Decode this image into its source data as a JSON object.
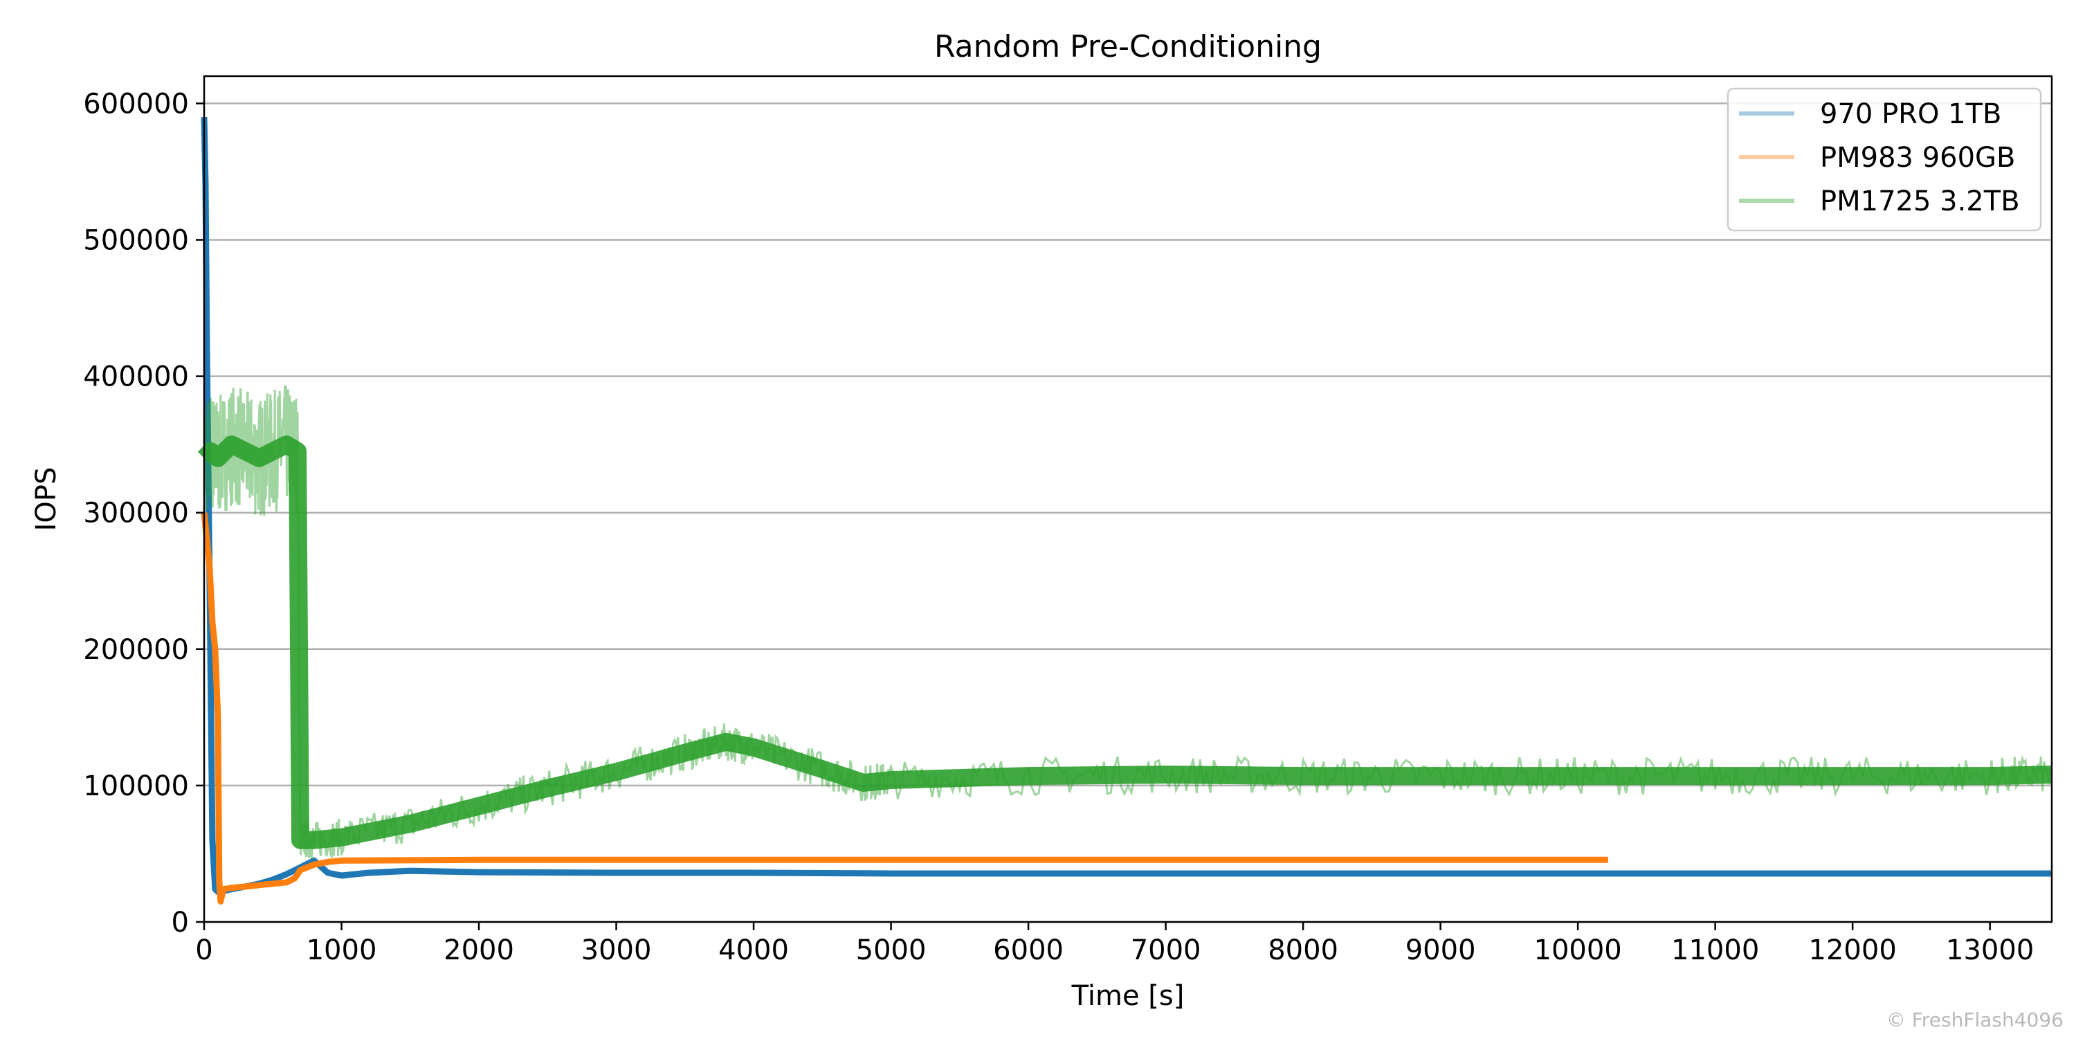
{
  "chart_data": {
    "type": "line",
    "title": "Random Pre-Conditioning",
    "xlabel": "Time [s]",
    "ylabel": "IOPS",
    "xlim": [
      0,
      13450
    ],
    "ylim": [
      0,
      620000
    ],
    "xticks": [
      0,
      1000,
      2000,
      3000,
      4000,
      5000,
      6000,
      7000,
      8000,
      9000,
      10000,
      11000,
      12000,
      13000
    ],
    "yticks": [
      0,
      100000,
      200000,
      300000,
      400000,
      500000,
      600000
    ],
    "grid": "y-major",
    "legend_position": "top-right",
    "series": [
      {
        "name": "970 PRO 1TB",
        "color": "#1f77b4",
        "x": [
          0,
          10,
          20,
          40,
          60,
          80,
          100,
          150,
          200,
          300,
          400,
          500,
          600,
          700,
          800,
          900,
          1000,
          1200,
          1500,
          2000,
          3000,
          4000,
          5000,
          6000,
          7000,
          8000,
          9000,
          10000,
          11000,
          12000,
          13000,
          13450
        ],
        "values": [
          590000,
          540000,
          420000,
          250000,
          60000,
          24000,
          22000,
          23000,
          24000,
          26000,
          28000,
          31000,
          35000,
          40000,
          45000,
          36000,
          34000,
          36000,
          37500,
          36500,
          36000,
          36000,
          35500,
          35500,
          35500,
          35500,
          35500,
          35500,
          35500,
          35500,
          35500,
          35500
        ]
      },
      {
        "name": "PM983 960GB",
        "color": "#ff7f0e",
        "x": [
          0,
          20,
          40,
          60,
          80,
          100,
          110,
          120,
          140,
          200,
          300,
          400,
          500,
          600,
          660,
          700,
          800,
          900,
          1000,
          2000,
          3000,
          4000,
          5000,
          6000,
          7000,
          8000,
          9000,
          10000,
          10220
        ],
        "values": [
          300000,
          280000,
          260000,
          220000,
          200000,
          150000,
          30000,
          15000,
          24000,
          25000,
          26000,
          27000,
          28000,
          29000,
          32000,
          38000,
          42000,
          44000,
          45000,
          45500,
          45500,
          45500,
          45500,
          45500,
          45500,
          45500,
          45500,
          45500,
          45500
        ]
      },
      {
        "name": "PM1725 3.2TB",
        "color": "#2ca02c",
        "x": [
          0,
          50,
          100,
          200,
          300,
          400,
          500,
          600,
          680,
          700,
          800,
          1000,
          1500,
          2000,
          2500,
          3000,
          3500,
          3800,
          4000,
          4500,
          4800,
          5000,
          6000,
          7000,
          8000,
          9000,
          10000,
          11000,
          12000,
          13000,
          13450
        ],
        "values": [
          340000,
          345000,
          340000,
          350000,
          345000,
          340000,
          345000,
          350000,
          345000,
          60000,
          60000,
          62000,
          72000,
          85000,
          98000,
          110000,
          124000,
          132000,
          128000,
          112000,
          102000,
          104000,
          107000,
          108000,
          107000,
          107000,
          107000,
          107000,
          107000,
          107000,
          108000
        ]
      }
    ]
  },
  "watermark": "© FreshFlash4096"
}
